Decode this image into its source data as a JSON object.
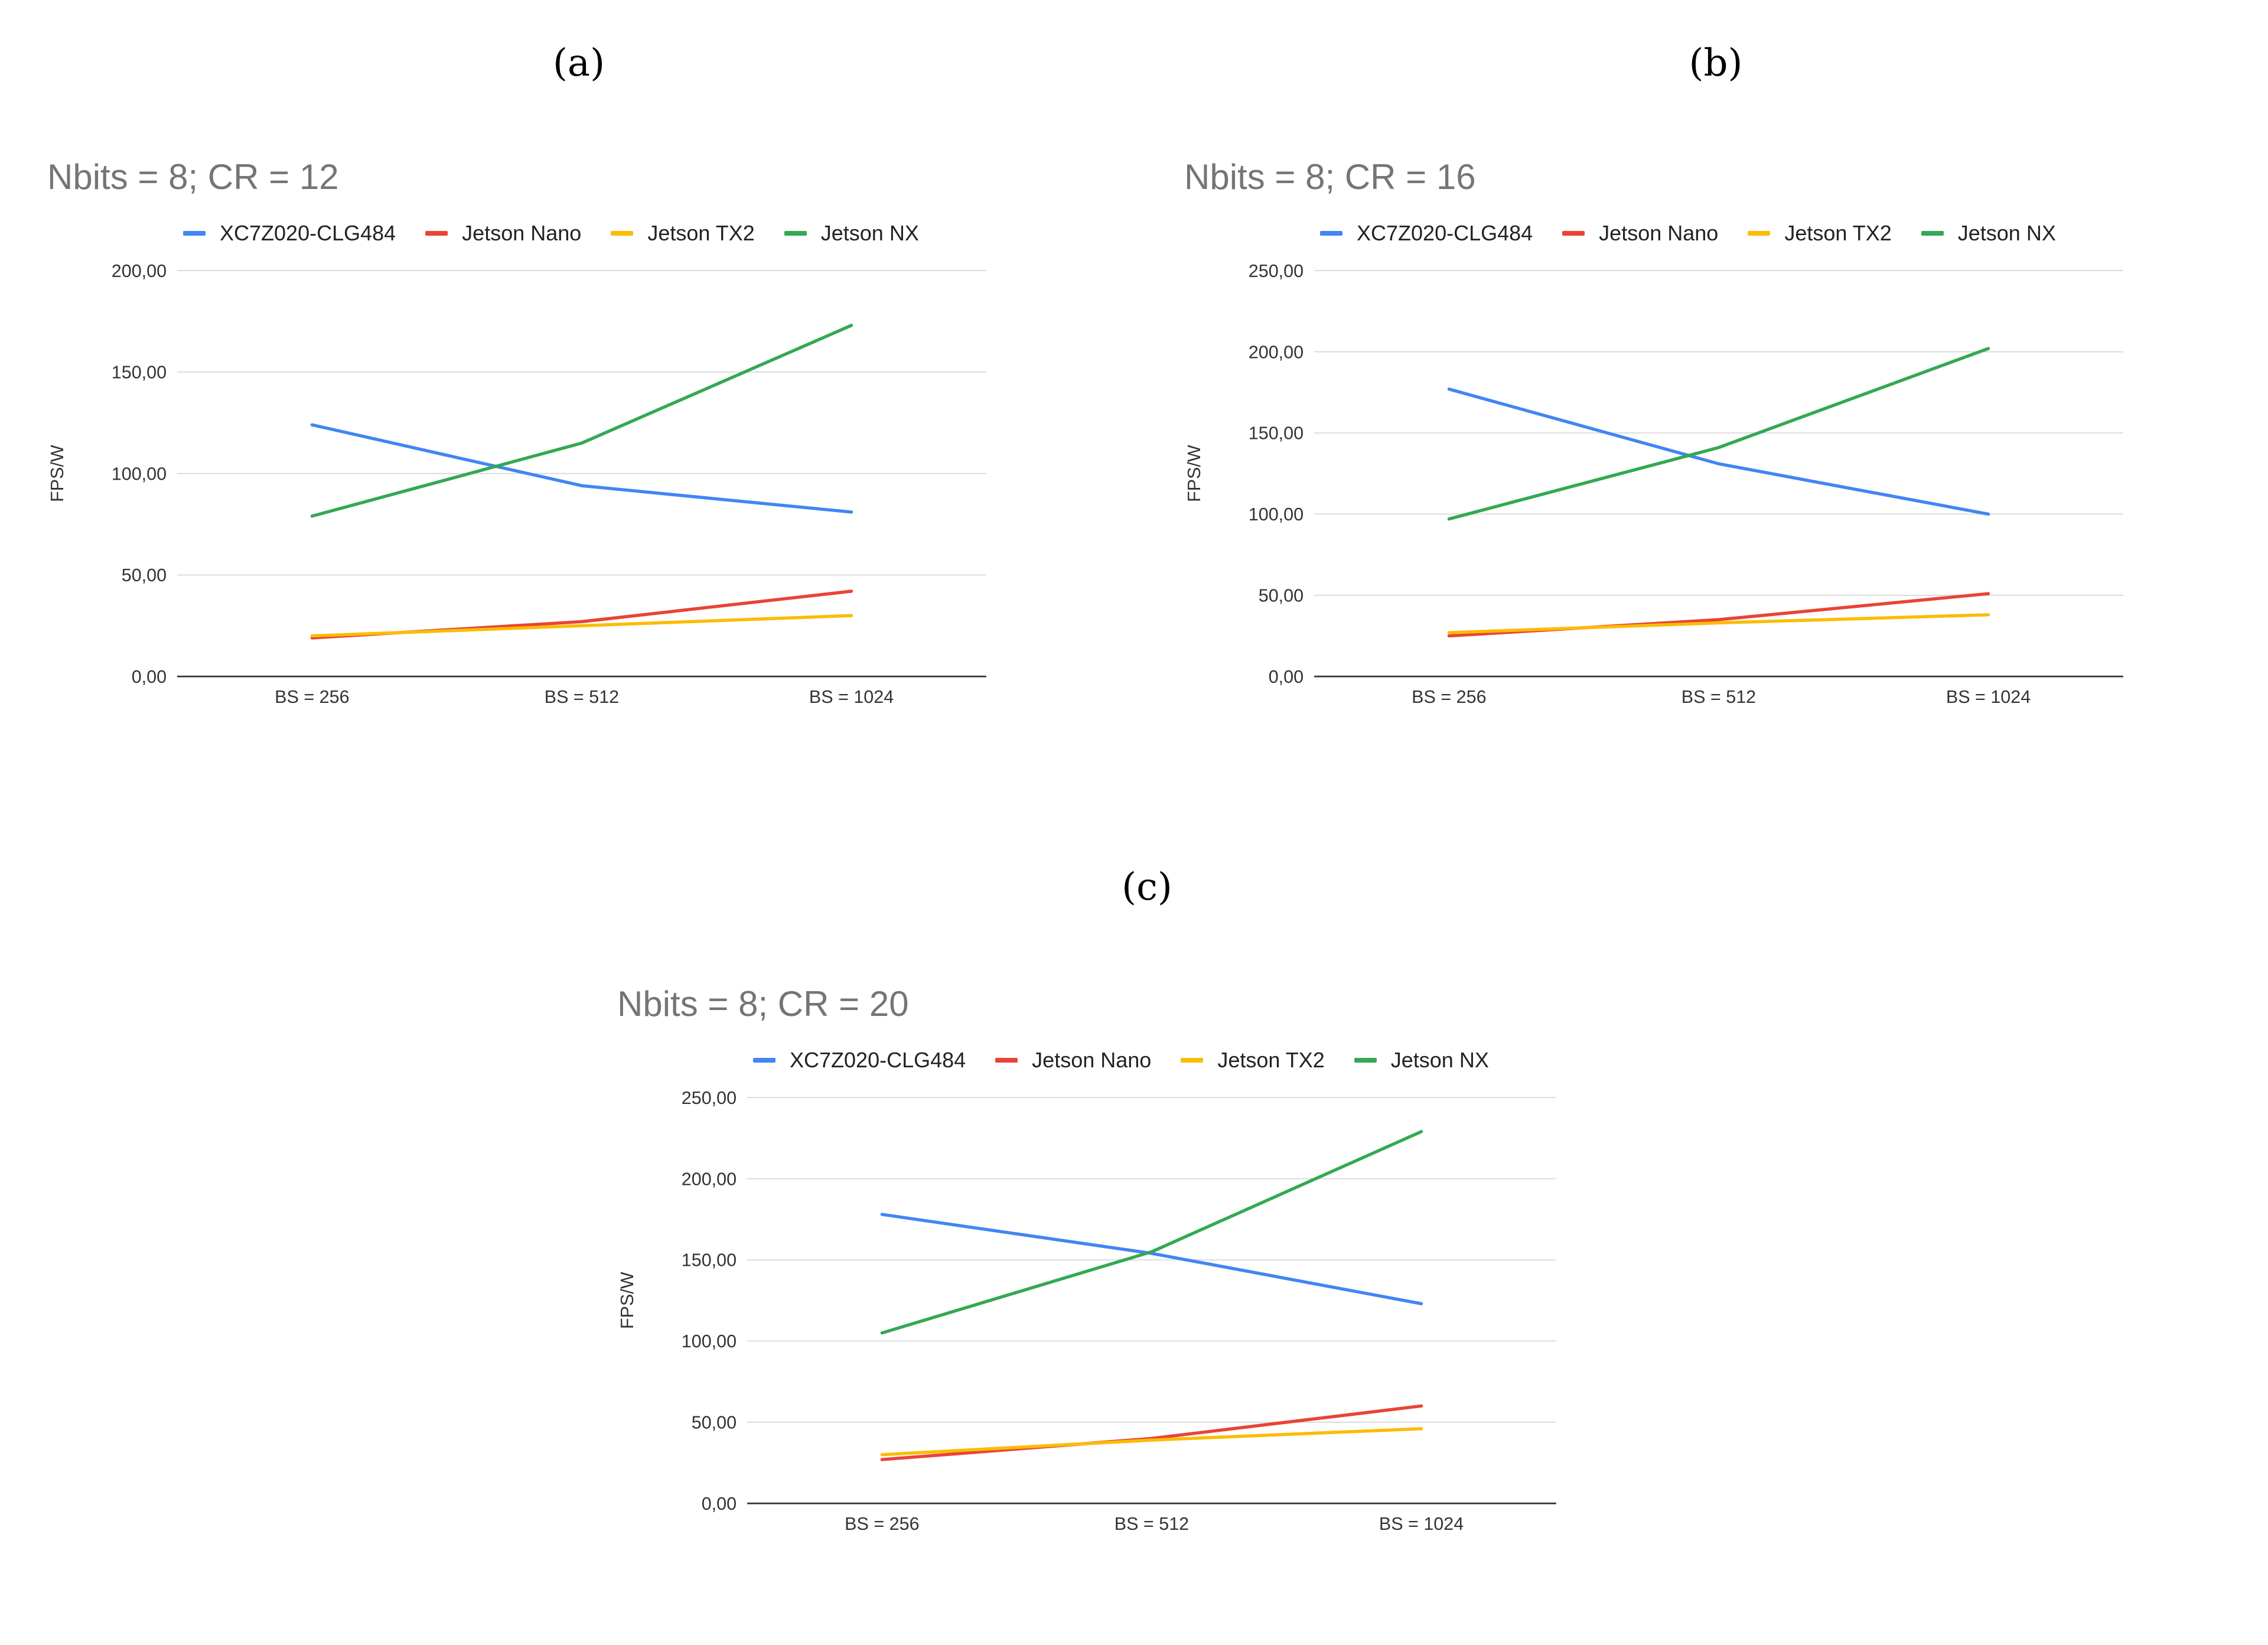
{
  "panel_labels": [
    "(a)",
    "(b)",
    "(c)"
  ],
  "colors": {
    "XC7Z020-CLG484": "#4285F4",
    "Jetson Nano": "#EA4335",
    "Jetson TX2": "#FBBC04",
    "Jetson NX": "#34A853",
    "gridline": "#d9d9d9",
    "axis": "#333333"
  },
  "chart_data": [
    {
      "type": "line",
      "title": "Nbits = 8; CR = 12",
      "xlabel": "",
      "ylabel": "FPS/W",
      "categories": [
        "BS = 256",
        "BS = 512",
        "BS = 1024"
      ],
      "ylim": [
        0,
        200
      ],
      "yticks": [
        0,
        50,
        100,
        150,
        200
      ],
      "ytick_labels": [
        "0,00",
        "50,00",
        "100,00",
        "150,00",
        "200,00"
      ],
      "legend_position": "top",
      "grid": true,
      "series": [
        {
          "name": "XC7Z020-CLG484",
          "values": [
            124,
            94,
            81
          ]
        },
        {
          "name": "Jetson Nano",
          "values": [
            19,
            27,
            42
          ]
        },
        {
          "name": "Jetson TX2",
          "values": [
            20,
            25,
            30
          ]
        },
        {
          "name": "Jetson NX",
          "values": [
            79,
            115,
            173
          ]
        }
      ]
    },
    {
      "type": "line",
      "title": "Nbits = 8; CR = 16",
      "xlabel": "",
      "ylabel": "FPS/W",
      "categories": [
        "BS = 256",
        "BS = 512",
        "BS = 1024"
      ],
      "ylim": [
        0,
        250
      ],
      "yticks": [
        0,
        50,
        100,
        150,
        200,
        250
      ],
      "ytick_labels": [
        "0,00",
        "50,00",
        "100,00",
        "150,00",
        "200,00",
        "250,00"
      ],
      "legend_position": "top",
      "grid": true,
      "series": [
        {
          "name": "XC7Z020-CLG484",
          "values": [
            177,
            131,
            100
          ]
        },
        {
          "name": "Jetson Nano",
          "values": [
            25,
            35,
            51
          ]
        },
        {
          "name": "Jetson TX2",
          "values": [
            27,
            33,
            38
          ]
        },
        {
          "name": "Jetson NX",
          "values": [
            97,
            141,
            202
          ]
        }
      ]
    },
    {
      "type": "line",
      "title": "Nbits = 8; CR = 20",
      "xlabel": "",
      "ylabel": "FPS/W",
      "categories": [
        "BS = 256",
        "BS = 512",
        "BS = 1024"
      ],
      "ylim": [
        0,
        250
      ],
      "yticks": [
        0,
        50,
        100,
        150,
        200,
        250
      ],
      "ytick_labels": [
        "0,00",
        "50,00",
        "100,00",
        "150,00",
        "200,00",
        "250,00"
      ],
      "legend_position": "top",
      "grid": true,
      "series": [
        {
          "name": "XC7Z020-CLG484",
          "values": [
            178,
            154,
            123
          ]
        },
        {
          "name": "Jetson Nano",
          "values": [
            27,
            40,
            60
          ]
        },
        {
          "name": "Jetson TX2",
          "values": [
            30,
            39,
            46
          ]
        },
        {
          "name": "Jetson NX",
          "values": [
            105,
            155,
            229
          ]
        }
      ]
    }
  ]
}
